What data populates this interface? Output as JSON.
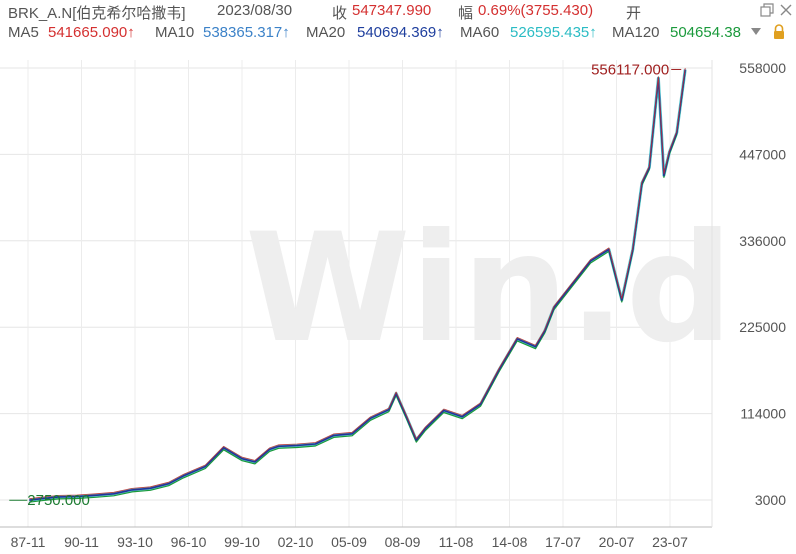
{
  "header": {
    "symbol": "BRK_A.N[伯克希尔哈撒韦]",
    "date": "2023/08/30",
    "close_label": "收",
    "close_value": "547347.990",
    "change_label": "幅",
    "change_value": "0.69%(3755.430)",
    "open_label": "开",
    "window_controls": [
      "restore-icon",
      "close-icon"
    ]
  },
  "ma": {
    "ma5": {
      "label": "MA5",
      "value": "541665.090↑",
      "color": "#d43030"
    },
    "ma10": {
      "label": "MA10",
      "value": "538365.317↑",
      "color": "#3c82c8"
    },
    "ma20": {
      "label": "MA20",
      "value": "540694.369↑",
      "color": "#1f3f9e"
    },
    "ma60": {
      "label": "MA60",
      "value": "526595.435↑",
      "color": "#2bbcc4"
    },
    "ma120": {
      "label": "MA120",
      "value": "504654.38",
      "color": "#1b9a3c"
    },
    "icons": [
      "dropdown-triangle-icon",
      "lock-icon"
    ]
  },
  "watermark": "Win.d",
  "chart_data": {
    "type": "line",
    "title": "",
    "grid": true,
    "y_ticks": [
      "558000",
      "447000",
      "336000",
      "225000",
      "114000",
      "3000"
    ],
    "y_tick_values": [
      558000,
      447000,
      336000,
      225000,
      114000,
      3000
    ],
    "x_ticks": [
      "87-11",
      "90-11",
      "93-10",
      "96-10",
      "99-10",
      "02-10",
      "05-09",
      "08-09",
      "11-08",
      "14-08",
      "17-07",
      "20-07",
      "23-07"
    ],
    "ylim": [
      3000,
      558000
    ],
    "annotations": {
      "max_label": "556117.000",
      "min_label": "2750.000"
    },
    "series": [
      {
        "x": [
          1987.9,
          1988.5,
          1989.5,
          1990.5,
          1991.5,
          1992.5,
          1993.5,
          1994.5,
          1995.5,
          1996.3,
          1997.5,
          1998.5,
          1999.5,
          2000.2,
          2001.0,
          2001.5,
          2002.5,
          2003.5,
          2004.5,
          2005.5,
          2006.5,
          2007.5,
          2007.9,
          2008.5,
          2009.0,
          2009.5,
          2010.5,
          2011.5,
          2012.5,
          2013.5,
          2014.5,
          2015.5,
          2016.0,
          2016.5,
          2017.5,
          2018.5,
          2019.5,
          2020.2,
          2020.8,
          2021.3,
          2021.7,
          2022.2,
          2022.5,
          2022.8,
          2023.2,
          2023.66
        ],
        "y": [
          2750,
          4500,
          7000,
          7500,
          9000,
          11000,
          16000,
          18000,
          24000,
          34000,
          46000,
          70000,
          56000,
          52000,
          68000,
          72000,
          73000,
          75000,
          86000,
          88000,
          108000,
          119000,
          140000,
          108000,
          80000,
          95000,
          118000,
          110000,
          126000,
          170000,
          210000,
          200000,
          220000,
          250000,
          280000,
          310000,
          325000,
          260000,
          325000,
          410000,
          430000,
          545000,
          420000,
          450000,
          475000,
          556117
        ]
      }
    ]
  }
}
